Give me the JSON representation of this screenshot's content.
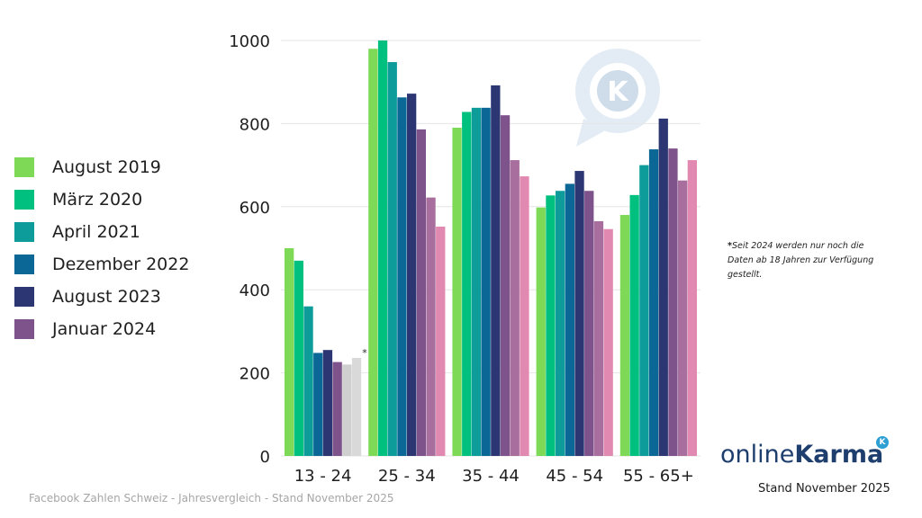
{
  "chart_data": {
    "type": "bar",
    "categories": [
      "13 - 24",
      "25 - 34",
      "35 - 44",
      "45 - 54",
      "55 - 65+"
    ],
    "series": [
      {
        "name": "August 2019",
        "color": "#7ed957",
        "values": [
          500,
          980,
          790,
          598,
          580
        ]
      },
      {
        "name": "März 2020",
        "color": "#00c07f",
        "values": [
          470,
          1000,
          828,
          627,
          628
        ]
      },
      {
        "name": "April 2021",
        "color": "#0e9c9a",
        "values": [
          360,
          948,
          838,
          638,
          700
        ]
      },
      {
        "name": "Dezember 2022",
        "color": "#0b6796",
        "values": [
          248,
          863,
          838,
          655,
          738
        ]
      },
      {
        "name": "August 2023",
        "color": "#2b3672",
        "values": [
          255,
          872,
          892,
          686,
          812
        ]
      },
      {
        "name": "Januar 2024",
        "color": "#7e528b",
        "values": [
          226,
          786,
          820,
          638,
          740
        ]
      },
      {
        "name": "",
        "color": "#a86e9e",
        "values": [
          220,
          622,
          712,
          565,
          663
        ],
        "note_color_first": "#cfcfcf"
      },
      {
        "name": "",
        "color": "#e289b1",
        "values": [
          236,
          552,
          673,
          546,
          712
        ],
        "note_color_first": "#d9d9d9"
      }
    ],
    "ylim": [
      0,
      1000
    ],
    "yticks": [
      0,
      200,
      400,
      600,
      800,
      1000
    ],
    "grid": true,
    "legend_position": "left",
    "annotation_marker": "*",
    "title": "",
    "xlabel": "",
    "ylabel": ""
  },
  "legend_entries": [
    {
      "label": "August 2019",
      "color": "#7ed957"
    },
    {
      "label": "März 2020",
      "color": "#00c07f"
    },
    {
      "label": "April 2021",
      "color": "#0e9c9a"
    },
    {
      "label": "Dezember 2022",
      "color": "#0b6796"
    },
    {
      "label": "August 2023",
      "color": "#2b3672"
    },
    {
      "label": "Januar 2024",
      "color": "#7e528b"
    }
  ],
  "footnote": {
    "marker": "*",
    "text": "Seit 2024 werden nur noch die Daten ab 18 Jahren zur Verfügung gestellt."
  },
  "brand": {
    "part1": "online",
    "part2": "Karma",
    "watermark_letter": "K",
    "color": "#1e3e6e"
  },
  "stand": "Stand November 2025",
  "source": "Facebook Zahlen Schweiz - Jahresvergleich - Stand November 2025"
}
